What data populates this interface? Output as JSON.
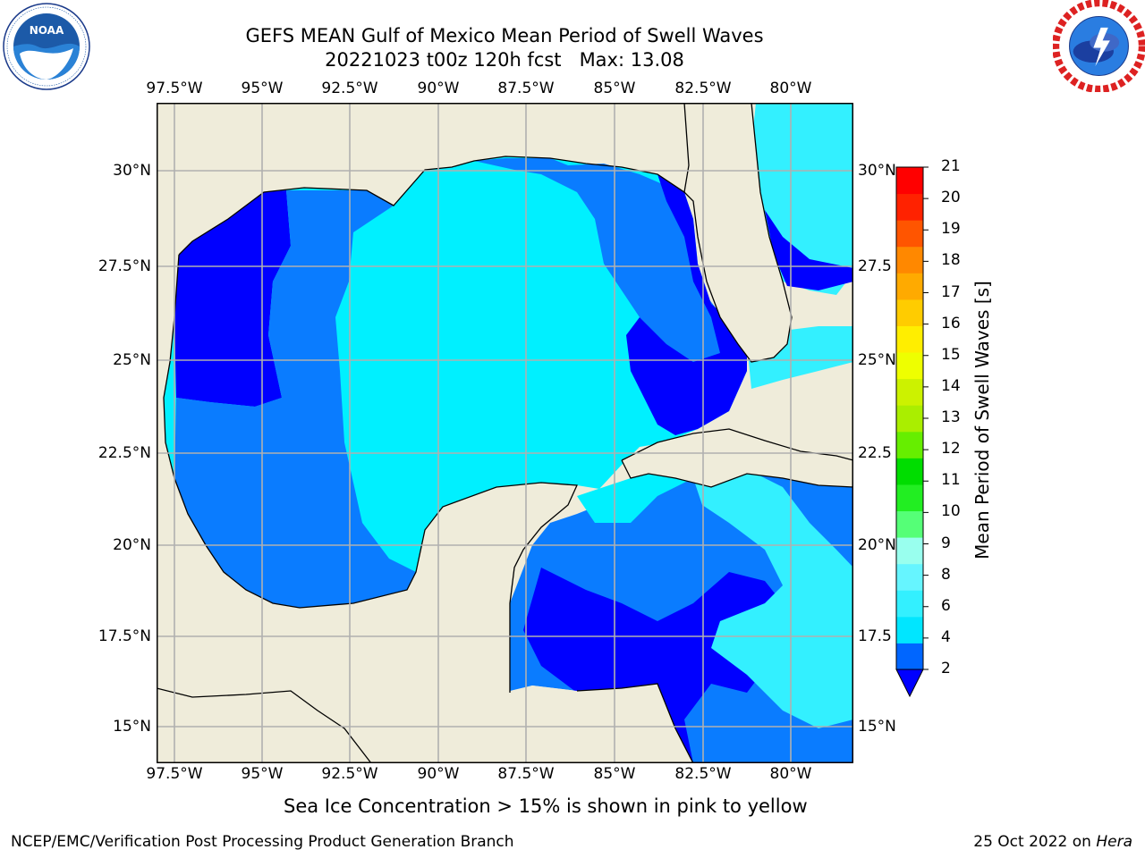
{
  "header": {
    "title_line1": "GEFS MEAN Gulf of Mexico Mean Period of Swell Waves",
    "title_line2": "20221023 t00z 120h fcst   Max: 13.08"
  },
  "logos": {
    "left": "noaa-logo",
    "right": "nws-logo"
  },
  "map": {
    "region": "Gulf of Mexico",
    "lon_ticks": [
      "97.5°W",
      "95°W",
      "92.5°W",
      "90°W",
      "87.5°W",
      "85°W",
      "82.5°W",
      "80°W"
    ],
    "lat_ticks_left": [
      "30°N",
      "27.5°N",
      "25°N",
      "22.5°N",
      "20°N",
      "17.5°N",
      "15°N"
    ],
    "lat_ticks_right": [
      "30°N",
      "27.5",
      "25°N",
      "22.5",
      "20°N",
      "17.5",
      "15°N"
    ],
    "colors": {
      "land": "#efecda",
      "grid": "#b0b0b0"
    }
  },
  "colorbar": {
    "label": "Mean Period of Swell Waves [s]",
    "ticks": [
      "2",
      "4",
      "6",
      "8",
      "9",
      "10",
      "11",
      "12",
      "13",
      "14",
      "15",
      "16",
      "17",
      "18",
      "19",
      "20",
      "21"
    ],
    "colors": [
      "#0066ff",
      "#00e6ff",
      "#33f0ff",
      "#66f5ff",
      "#99ffee",
      "#55ff77",
      "#22ee22",
      "#00dd00",
      "#66ee00",
      "#aaee00",
      "#ccf200",
      "#eeff00",
      "#ffee00",
      "#ffcc00",
      "#ffaa00",
      "#ff8800",
      "#ff5500",
      "#ff2200",
      "#ff0000"
    ],
    "under_color": "#0000ff"
  },
  "footnote": "Sea Ice Concentration > 15% is shown in pink to yellow",
  "footer": {
    "branch": "NCEP/EMC/Verification Post Processing Product Generation Branch",
    "date_prefix": "25 Oct 2022 on",
    "machine": "Hera"
  }
}
